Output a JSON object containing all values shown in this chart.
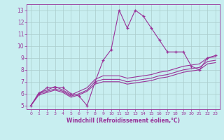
{
  "title": "",
  "xlabel": "Windchill (Refroidissement éolien,°C)",
  "ylabel": "",
  "bg_color": "#c8eef0",
  "line_color": "#993399",
  "grid_color": "#aacccc",
  "xlim": [
    -0.5,
    23.5
  ],
  "ylim": [
    4.7,
    13.5
  ],
  "xticks": [
    0,
    1,
    2,
    3,
    4,
    5,
    6,
    7,
    8,
    9,
    10,
    11,
    12,
    13,
    14,
    15,
    16,
    17,
    18,
    19,
    20,
    21,
    22,
    23
  ],
  "yticks": [
    5,
    6,
    7,
    8,
    9,
    10,
    11,
    12,
    13
  ],
  "series": [
    [
      5.0,
      6.0,
      6.5,
      6.5,
      6.5,
      6.0,
      5.8,
      5.0,
      7.0,
      8.8,
      9.7,
      13.0,
      11.5,
      13.0,
      12.5,
      11.5,
      10.5,
      9.5,
      9.5,
      9.5,
      8.3,
      8.0,
      9.0,
      9.2
    ],
    [
      5.0,
      6.1,
      6.3,
      6.6,
      6.3,
      5.9,
      6.2,
      6.5,
      7.2,
      7.5,
      7.5,
      7.5,
      7.3,
      7.4,
      7.5,
      7.6,
      7.8,
      7.9,
      8.1,
      8.3,
      8.4,
      8.5,
      9.0,
      9.1
    ],
    [
      5.0,
      6.0,
      6.2,
      6.4,
      6.2,
      5.8,
      6.0,
      6.3,
      7.0,
      7.2,
      7.2,
      7.2,
      7.0,
      7.1,
      7.2,
      7.3,
      7.5,
      7.6,
      7.8,
      8.0,
      8.1,
      8.2,
      8.7,
      8.8
    ],
    [
      5.0,
      5.9,
      6.1,
      6.3,
      6.1,
      5.7,
      5.9,
      6.2,
      6.8,
      7.0,
      7.0,
      7.0,
      6.8,
      6.9,
      7.0,
      7.1,
      7.3,
      7.4,
      7.6,
      7.8,
      7.9,
      8.0,
      8.5,
      8.6
    ]
  ]
}
